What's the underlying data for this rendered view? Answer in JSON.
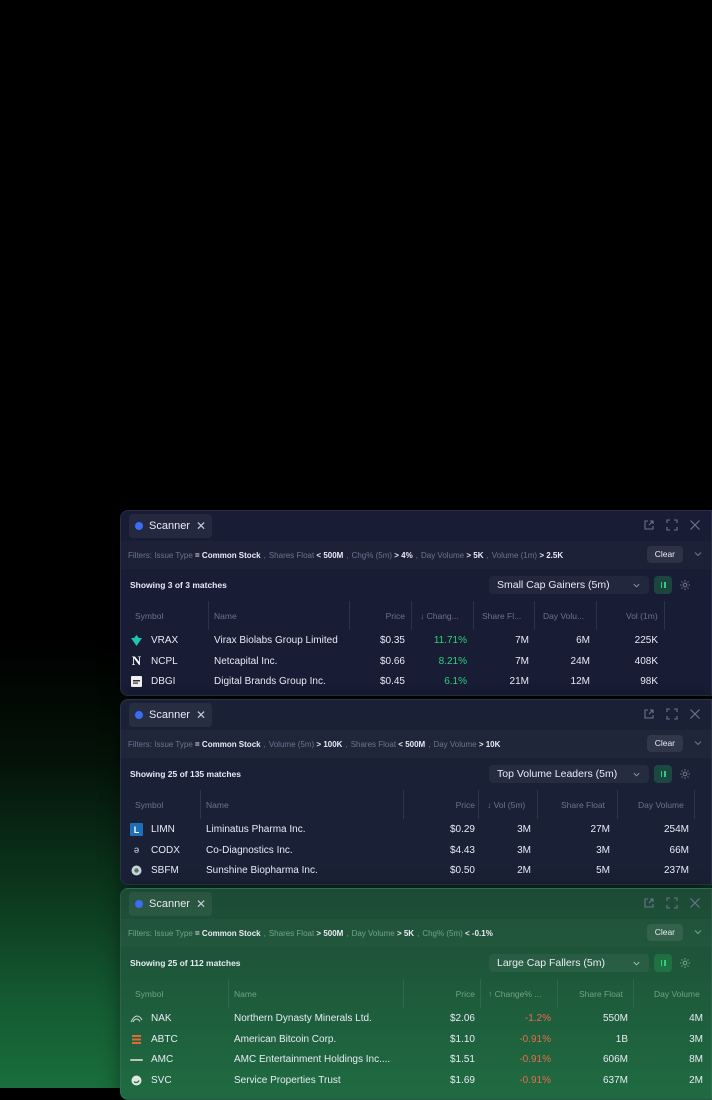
{
  "colors": {
    "accent": "#3b6cf5",
    "positive": "#2fd07a",
    "negative": "#ea6a4e"
  },
  "panels": [
    {
      "tab_label": "Scanner",
      "filters": {
        "prefix": "Filters:",
        "items": [
          {
            "name": "Issue Type",
            "op": "=",
            "value": "Common Stock"
          },
          {
            "name": "Shares Float",
            "op": "<",
            "value": "500M"
          },
          {
            "name": "Chg% (5m)",
            "op": ">",
            "value": "4%"
          },
          {
            "name": "Day Volume",
            "op": ">",
            "value": "5K"
          },
          {
            "name": "Volume (1m)",
            "op": ">",
            "value": "2.5K"
          }
        ]
      },
      "clear_label": "Clear",
      "match_text": "Showing 3 of 3 matches",
      "preset": "Small Cap Gainers (5m)",
      "columns": [
        "Symbol",
        "Name",
        "Price",
        "↓ Chang...",
        "Share Fl...",
        "Day Volu...",
        "Vol (1m)"
      ],
      "rows": [
        {
          "icon": "virax-logo",
          "symbol": "VRAX",
          "name": "Virax Biolabs Group Limited",
          "price": "$0.35",
          "change": "11.71%",
          "float": "7M",
          "dayvol": "6M",
          "vol1m": "225K"
        },
        {
          "icon": "netcapital-logo",
          "symbol": "NCPL",
          "name": "Netcapital Inc.",
          "price": "$0.66",
          "change": "8.21%",
          "float": "7M",
          "dayvol": "24M",
          "vol1m": "408K"
        },
        {
          "icon": "digital-brands-logo",
          "symbol": "DBGI",
          "name": "Digital Brands Group Inc.",
          "price": "$0.45",
          "change": "6.1%",
          "float": "21M",
          "dayvol": "12M",
          "vol1m": "98K"
        }
      ]
    },
    {
      "tab_label": "Scanner",
      "filters": {
        "prefix": "Filters:",
        "items": [
          {
            "name": "Issue Type",
            "op": "=",
            "value": "Common Stock"
          },
          {
            "name": "Volume (5m)",
            "op": ">",
            "value": "100K"
          },
          {
            "name": "Shares Float",
            "op": "<",
            "value": "500M"
          },
          {
            "name": "Day Volume",
            "op": ">",
            "value": "10K"
          }
        ]
      },
      "clear_label": "Clear",
      "match_text": "Showing 25 of 135 matches",
      "preset": "Top Volume Leaders (5m)",
      "columns": [
        "Symbol",
        "Name",
        "Price",
        "↓ Vol (5m)",
        "Share Float",
        "Day Volume"
      ],
      "rows": [
        {
          "icon": "liminatus-logo",
          "symbol": "LIMN",
          "name": "Liminatus Pharma Inc.",
          "price": "$0.29",
          "vol5m": "3M",
          "float": "27M",
          "dayvol": "254M"
        },
        {
          "icon": "co-diagnostics-logo",
          "symbol": "CODX",
          "name": "Co-Diagnostics Inc.",
          "price": "$4.43",
          "vol5m": "3M",
          "float": "3M",
          "dayvol": "66M"
        },
        {
          "icon": "sunshine-bio-logo",
          "symbol": "SBFM",
          "name": "Sunshine Biopharma Inc.",
          "price": "$0.50",
          "vol5m": "2M",
          "float": "5M",
          "dayvol": "237M"
        }
      ]
    },
    {
      "tab_label": "Scanner",
      "filters": {
        "prefix": "Filters:",
        "items": [
          {
            "name": "Issue Type",
            "op": "=",
            "value": "Common Stock"
          },
          {
            "name": "Shares Float",
            "op": ">",
            "value": "500M"
          },
          {
            "name": "Day Volume",
            "op": ">",
            "value": "5K"
          },
          {
            "name": "Chg% (5m)",
            "op": "<",
            "value": "-0.1%"
          }
        ]
      },
      "clear_label": "Clear",
      "match_text": "Showing 25 of 112 matches",
      "preset": "Large Cap Fallers (5m)",
      "columns": [
        "Symbol",
        "Name",
        "Price",
        "↑ Change% ...",
        "Share Float",
        "Day Volume"
      ],
      "rows": [
        {
          "icon": "northern-dynasty-logo",
          "symbol": "NAK",
          "name": "Northern Dynasty Minerals Ltd.",
          "price": "$2.06",
          "change": "-1.2%",
          "float": "550M",
          "dayvol": "4M"
        },
        {
          "icon": "american-bitcoin-logo",
          "symbol": "ABTC",
          "name": "American Bitcoin Corp.",
          "price": "$1.10",
          "change": "-0.91%",
          "float": "1B",
          "dayvol": "3M"
        },
        {
          "icon": "amc-logo",
          "symbol": "AMC",
          "name": "AMC Entertainment Holdings Inc....",
          "price": "$1.51",
          "change": "-0.91%",
          "float": "606M",
          "dayvol": "8M"
        },
        {
          "icon": "service-properties-logo",
          "symbol": "SVC",
          "name": "Service Properties Trust",
          "price": "$1.69",
          "change": "-0.91%",
          "float": "637M",
          "dayvol": "2M"
        }
      ]
    }
  ]
}
